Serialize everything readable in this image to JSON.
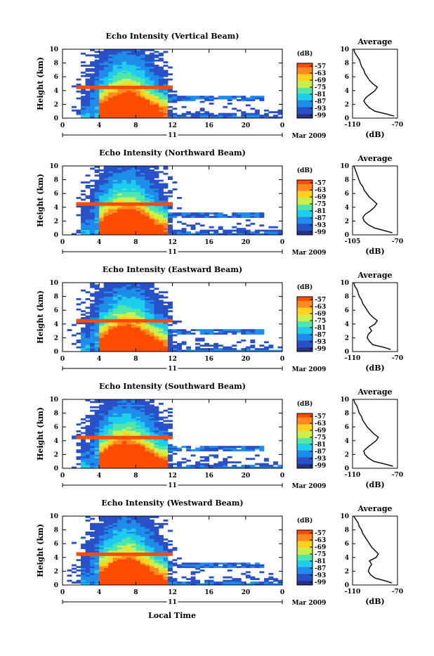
{
  "figure": {
    "xlabel": "Local Time",
    "date_label": "Mar 2009",
    "day_label": "11"
  },
  "colorbar": {
    "label": "(dB)",
    "ticks": [
      "-57",
      "-63",
      "-69",
      "-75",
      "-81",
      "-87",
      "-93",
      "-99"
    ],
    "colors": [
      "#ff4c00",
      "#ff8a1e",
      "#ffd21e",
      "#c8f050",
      "#50e6aa",
      "#1ecdeb",
      "#1e8ceb",
      "#2850c8",
      "#283282"
    ]
  },
  "chart_data": [
    {
      "type": "heatmap",
      "title": "Echo Intensity (Vertical Beam)",
      "ylabel": "Height (km)",
      "xlim": [
        0,
        24
      ],
      "ylim": [
        0,
        10
      ],
      "xticks": [
        "0",
        "4",
        "8",
        "12",
        "16",
        "20",
        "0"
      ],
      "yticks": [
        "0",
        "2",
        "4",
        "6",
        "8",
        "10"
      ],
      "profile": {
        "title": "Average",
        "xlabel": "(dB)",
        "xticks": [
          "-110",
          "-70"
        ],
        "xlim": [
          -110,
          -70
        ],
        "heights": [
          0.3,
          0.6,
          1.0,
          1.5,
          2.0,
          2.5,
          3.0,
          3.5,
          4.0,
          4.5,
          5.0,
          5.5,
          6.0,
          6.5,
          7.0,
          7.5,
          8.0,
          8.5,
          9.0,
          9.5,
          10.0
        ],
        "values": [
          -73,
          -80,
          -90,
          -95,
          -98,
          -100,
          -98,
          -94,
          -90,
          -88,
          -92,
          -95,
          -97,
          -99,
          -100,
          -102,
          -103,
          -104,
          -106,
          -108,
          -109
        ]
      }
    },
    {
      "type": "heatmap",
      "title": "Echo Intensity (Northward Beam)",
      "ylabel": "Height (km)",
      "xlim": [
        0,
        24
      ],
      "ylim": [
        0,
        10
      ],
      "xticks": [
        "0",
        "4",
        "8",
        "12",
        "16",
        "20",
        "0"
      ],
      "yticks": [
        "0",
        "2",
        "4",
        "6",
        "8",
        "10"
      ],
      "profile": {
        "title": "Average",
        "xlabel": "(dB)",
        "xticks": [
          "-105",
          "-70"
        ],
        "xlim": [
          -105,
          -70
        ],
        "heights": [
          0.3,
          0.6,
          1.0,
          1.5,
          2.0,
          2.5,
          3.0,
          3.5,
          4.0,
          4.5,
          5.0,
          5.5,
          6.0,
          6.5,
          7.0,
          7.5,
          8.0,
          8.5,
          9.0,
          9.5,
          10.0
        ],
        "values": [
          -74,
          -80,
          -88,
          -93,
          -96,
          -97,
          -95,
          -91,
          -88,
          -86,
          -89,
          -92,
          -94,
          -96,
          -97,
          -99,
          -100,
          -101,
          -102,
          -103,
          -104
        ]
      }
    },
    {
      "type": "heatmap",
      "title": "Echo Intensity (Eastward Beam)",
      "ylabel": "Height (km)",
      "xlim": [
        0,
        24
      ],
      "ylim": [
        0,
        10
      ],
      "xticks": [
        "0",
        "4",
        "8",
        "12",
        "16",
        "20",
        "0"
      ],
      "yticks": [
        "0",
        "2",
        "4",
        "6",
        "8",
        "10"
      ],
      "profile": {
        "title": "Average",
        "xlabel": "(dB)",
        "xticks": [
          "-110",
          "-70"
        ],
        "xlim": [
          -110,
          -70
        ],
        "heights": [
          0.3,
          0.6,
          1.0,
          1.5,
          2.0,
          2.5,
          3.0,
          3.5,
          4.0,
          4.5,
          5.0,
          5.5,
          6.0,
          6.5,
          7.0,
          7.5,
          8.0,
          8.5,
          9.0,
          9.5,
          10.0
        ],
        "values": [
          -76,
          -82,
          -92,
          -95,
          -97,
          -96,
          -93,
          -95,
          -90,
          -88,
          -92,
          -95,
          -97,
          -99,
          -101,
          -102,
          -104,
          -105,
          -106,
          -108,
          -109
        ]
      }
    },
    {
      "type": "heatmap",
      "title": "Echo Intensity (Southward Beam)",
      "ylabel": "Height (km)",
      "xlim": [
        0,
        24
      ],
      "ylim": [
        0,
        10
      ],
      "xticks": [
        "0",
        "4",
        "8",
        "12",
        "16",
        "20",
        "0"
      ],
      "yticks": [
        "0",
        "2",
        "4",
        "6",
        "8",
        "10"
      ],
      "profile": {
        "title": "Average",
        "xlabel": "(dB)",
        "xticks": [
          "-110",
          "-70"
        ],
        "xlim": [
          -110,
          -70
        ],
        "heights": [
          0.3,
          0.6,
          1.0,
          1.5,
          2.0,
          2.5,
          3.0,
          3.5,
          4.0,
          4.5,
          5.0,
          5.5,
          6.0,
          6.5,
          7.0,
          7.5,
          8.0,
          8.5,
          9.0,
          9.5,
          10.0
        ],
        "values": [
          -74,
          -81,
          -91,
          -96,
          -99,
          -100,
          -97,
          -93,
          -89,
          -87,
          -91,
          -94,
          -97,
          -99,
          -101,
          -102,
          -104,
          -105,
          -106,
          -108,
          -109
        ]
      }
    },
    {
      "type": "heatmap",
      "title": "Echo Intensity (Westward Beam)",
      "ylabel": "Height (km)",
      "xlim": [
        0,
        24
      ],
      "ylim": [
        0,
        10
      ],
      "xticks": [
        "0",
        "4",
        "8",
        "12",
        "16",
        "20",
        "0"
      ],
      "yticks": [
        "0",
        "2",
        "4",
        "6",
        "8",
        "10"
      ],
      "profile": {
        "title": "Average",
        "xlabel": "(dB)",
        "xticks": [
          "-110",
          "-70"
        ],
        "xlim": [
          -110,
          -70
        ],
        "heights": [
          0.3,
          0.6,
          1.0,
          1.5,
          2.0,
          2.5,
          3.0,
          3.5,
          4.0,
          4.5,
          5.0,
          5.5,
          6.0,
          6.5,
          7.0,
          7.5,
          8.0,
          8.5,
          9.0,
          9.5,
          10.0
        ],
        "values": [
          -75,
          -81,
          -90,
          -94,
          -96,
          -95,
          -93,
          -95,
          -89,
          -87,
          -90,
          -93,
          -95,
          -97,
          -99,
          -101,
          -102,
          -104,
          -105,
          -107,
          -109
        ]
      }
    }
  ]
}
